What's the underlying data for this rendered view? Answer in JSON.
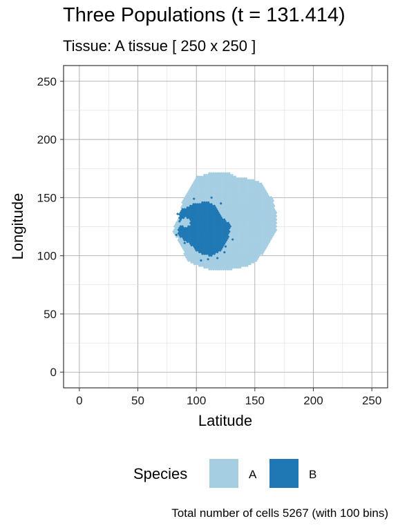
{
  "chart_data": {
    "type": "hexbin",
    "title": "Three Populations (t = 131.414)",
    "subtitle": "Tissue: A tissue [ 250 x 250 ]",
    "xlabel": "Latitude",
    "ylabel": "Longitude",
    "xlim": [
      -13.5,
      263.5
    ],
    "ylim": [
      -13.5,
      263.5
    ],
    "xticks": [
      0,
      50,
      100,
      150,
      200,
      250
    ],
    "yticks": [
      0,
      50,
      100,
      150,
      200,
      250
    ],
    "grid": true,
    "legend": {
      "title": "Species",
      "placement": "bottom",
      "entries": [
        {
          "label": "A",
          "color": "#a6cee3"
        },
        {
          "label": "B",
          "color": "#1f78b4"
        }
      ]
    },
    "caption": "Total number of cells 5267 (with 100 bins)",
    "regions": {
      "A": {
        "approx_extent_x": [
          80,
          168
        ],
        "approx_extent_y": [
          86,
          171
        ]
      },
      "B": {
        "approx_extent_x": [
          83,
          130
        ],
        "approx_extent_y": [
          98,
          146
        ]
      }
    }
  }
}
